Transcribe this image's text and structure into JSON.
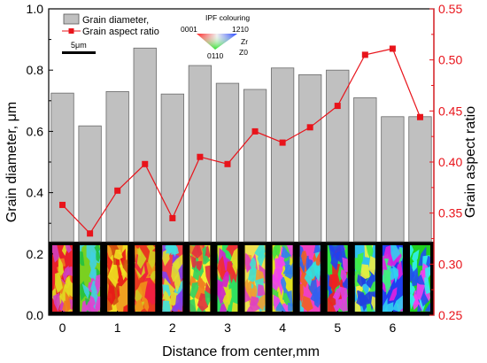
{
  "chart_data": {
    "type": "bar",
    "xlabel": "Distance from center,mm",
    "x_ticks": [
      0,
      1,
      2,
      3,
      4,
      5,
      6
    ],
    "x_range": [
      -0.25,
      6.75
    ],
    "y_left": {
      "label": "Grain diameter, μm",
      "range": [
        0.0,
        1.0
      ],
      "ticks": [
        "0.0",
        "0.2",
        "0.4",
        "0.6",
        "0.8",
        "1.0"
      ]
    },
    "y_right": {
      "label": "Grain aspect ratio",
      "range": [
        0.25,
        0.55
      ],
      "ticks": [
        "0.25",
        "0.30",
        "0.35",
        "0.40",
        "0.45",
        "0.50",
        "0.55"
      ],
      "color": "#e8141b"
    },
    "x": [
      0,
      0.5,
      1,
      1.5,
      2,
      2.5,
      3,
      3.5,
      4,
      4.5,
      5,
      5.5,
      6,
      6.5
    ],
    "series": [
      {
        "name": "Grain diameter,",
        "axis": "left",
        "kind": "bar",
        "color": "#c0c0c0",
        "values": [
          0.725,
          0.618,
          0.73,
          0.872,
          0.722,
          0.815,
          0.757,
          0.737,
          0.807,
          0.785,
          0.8,
          0.71,
          0.648,
          0.648
        ]
      },
      {
        "name": "Grain aspect ratio",
        "axis": "right",
        "kind": "line-marker",
        "color": "#e8141b",
        "values": [
          0.358,
          0.33,
          0.372,
          0.398,
          0.345,
          0.405,
          0.398,
          0.43,
          0.419,
          0.434,
          0.455,
          0.505,
          0.511,
          0.444
        ]
      }
    ],
    "legend_position": "top-left",
    "inset": {
      "scale_bar": "5μm",
      "ipf_title": "IPF colouring",
      "ipf_labels": [
        "0001",
        "1210",
        "0110"
      ],
      "zr_label": "Zr",
      "z0_label": "Z0"
    },
    "micrograph_strip": {
      "dominant_colors": [
        [
          "#e8202a",
          "#f07a1c",
          "#e0e020",
          "#d040c0"
        ],
        [
          "#7ad020",
          "#e040d0",
          "#40d0e0",
          "#20c040"
        ],
        [
          "#f0a020",
          "#e81818",
          "#d05010",
          "#f0e020"
        ],
        [
          "#e83820",
          "#f09018",
          "#d0d020",
          "#f02040"
        ],
        [
          "#f04048",
          "#e0e030",
          "#40e0e0",
          "#8040f0"
        ],
        [
          "#f0f030",
          "#e03040",
          "#30d060",
          "#f08020"
        ],
        [
          "#30e060",
          "#f03030",
          "#e0e020",
          "#d020d0"
        ],
        [
          "#f0e050",
          "#40e0d0",
          "#e040c0",
          "#f0a030"
        ],
        [
          "#e0e020",
          "#3080f0",
          "#f040f0",
          "#40e040"
        ],
        [
          "#f040c0",
          "#3060f0",
          "#30e0e0",
          "#f06020"
        ],
        [
          "#30e040",
          "#f02020",
          "#e040e0",
          "#2040f0"
        ],
        [
          "#30c0f0",
          "#2040e0",
          "#40f040",
          "#f0f040"
        ],
        [
          "#2040f0",
          "#e020e0",
          "#30d0f0",
          "#40f080"
        ],
        [
          "#20d020",
          "#30f0f0",
          "#2050f0",
          "#f040f0"
        ]
      ]
    }
  }
}
